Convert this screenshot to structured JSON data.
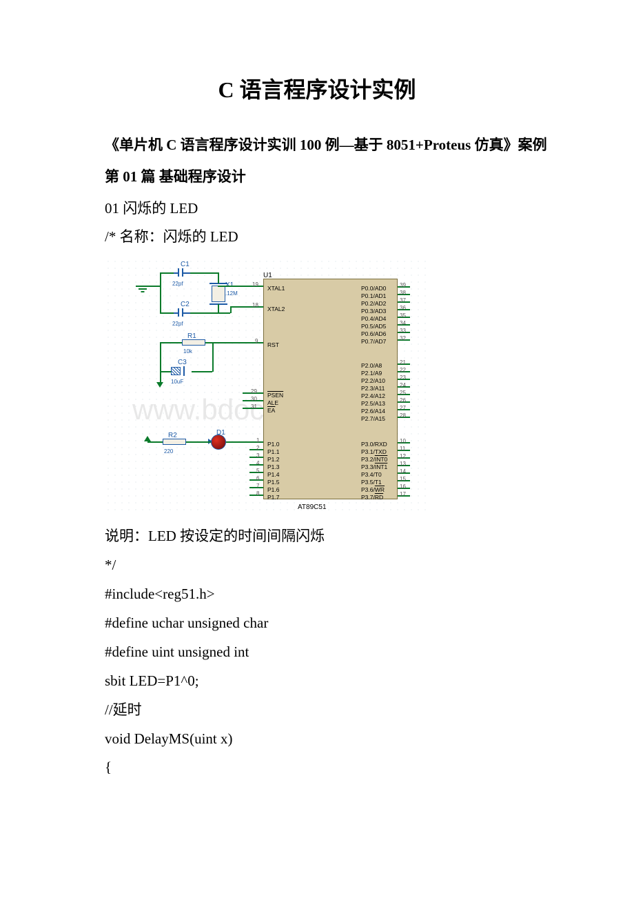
{
  "title": "C 语言程序设计实例",
  "subtitle": "《单片机 C 语言程序设计实训 100 例—基于 8051+Proteus 仿真》案例",
  "section": "第 01 篇 基础程序设计",
  "lines": {
    "l1": "01 闪烁的 LED",
    "l2": "/*  名称：闪烁的 LED",
    "l3": " 说明：LED 按设定的时间间隔闪烁",
    "l4": "*/",
    "l5": "#include<reg51.h>",
    "l6": "#define uchar unsigned char",
    "l7": "#define uint unsigned int",
    "l8": "sbit LED=P1^0;",
    "l9": "//延时",
    "l10": "void DelayMS(uint x)",
    "l11": "{"
  },
  "diagram": {
    "chip_name": "AT89C51",
    "chip_ref": "U1",
    "components": {
      "C1": {
        "ref": "C1",
        "val": "22pf"
      },
      "C2": {
        "ref": "C2",
        "val": "22pf"
      },
      "C3": {
        "ref": "C3",
        "val": "10uF"
      },
      "X1": {
        "ref": "X1",
        "val": ".12M"
      },
      "R1": {
        "ref": "R1",
        "val": "10k"
      },
      "R2": {
        "ref": "R2",
        "val": "220"
      },
      "D1": {
        "ref": "D1"
      }
    },
    "watermark": "www.bdocx.com",
    "left_pins": {
      "xtal1": {
        "num": "19",
        "name": "XTAL1"
      },
      "xtal2": {
        "num": "18",
        "name": "XTAL2"
      },
      "rst": {
        "num": "9",
        "name": "RST"
      },
      "psen": {
        "num": "29",
        "name": "PSEN"
      },
      "ale": {
        "num": "30",
        "name": "ALE"
      },
      "ea": {
        "num": "31",
        "name": "EA"
      },
      "p10": {
        "num": "1",
        "name": "P1.0"
      },
      "p11": {
        "num": "2",
        "name": "P1.1"
      },
      "p12": {
        "num": "3",
        "name": "P1.2"
      },
      "p13": {
        "num": "4",
        "name": "P1.3"
      },
      "p14": {
        "num": "5",
        "name": "P1.4"
      },
      "p15": {
        "num": "6",
        "name": "P1.5"
      },
      "p16": {
        "num": "7",
        "name": "P1.6"
      },
      "p17": {
        "num": "8",
        "name": "P1.7"
      }
    },
    "right_pins_p0": [
      {
        "num": "39",
        "name": "P0.0/AD0"
      },
      {
        "num": "38",
        "name": "P0.1/AD1"
      },
      {
        "num": "37",
        "name": "P0.2/AD2"
      },
      {
        "num": "36",
        "name": "P0.3/AD3"
      },
      {
        "num": "35",
        "name": "P0.4/AD4"
      },
      {
        "num": "34",
        "name": "P0.5/AD5"
      },
      {
        "num": "33",
        "name": "P0.6/AD6"
      },
      {
        "num": "32",
        "name": "P0.7/AD7"
      }
    ],
    "right_pins_p2": [
      {
        "num": "21",
        "name": "P2.0/A8"
      },
      {
        "num": "22",
        "name": "P2.1/A9"
      },
      {
        "num": "23",
        "name": "P2.2/A10"
      },
      {
        "num": "24",
        "name": "P2.3/A11"
      },
      {
        "num": "25",
        "name": "P2.4/A12"
      },
      {
        "num": "26",
        "name": "P2.5/A13"
      },
      {
        "num": "27",
        "name": "P2.6/A14"
      },
      {
        "num": "28",
        "name": "P2.7/A15"
      }
    ],
    "right_pins_p3": [
      {
        "num": "10",
        "name": "P3.0/RXD"
      },
      {
        "num": "11",
        "name": "P3.1/TXD"
      },
      {
        "num": "12",
        "name": "P3.2/INT0",
        "over": "INT0"
      },
      {
        "num": "13",
        "name": "P3.3/INT1",
        "over": "INT1"
      },
      {
        "num": "14",
        "name": "P3.4/T0"
      },
      {
        "num": "15",
        "name": "P3.5/T1"
      },
      {
        "num": "16",
        "name": "P3.6/WR",
        "over": "WR"
      },
      {
        "num": "17",
        "name": "P3.7/RD",
        "over": "RD"
      }
    ]
  }
}
